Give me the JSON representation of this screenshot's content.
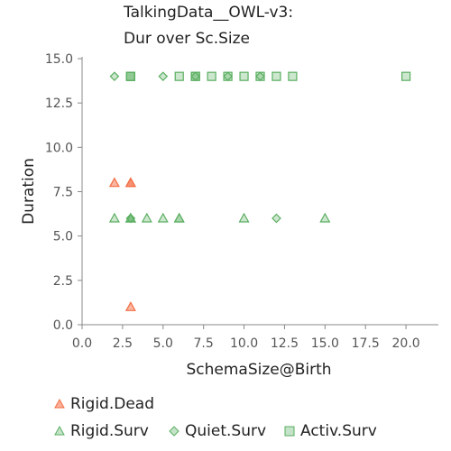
{
  "chart_data": {
    "type": "scatter",
    "title_lines": [
      "TalkingData__OWL-v3:",
      "Dur over Sc.Size"
    ],
    "xlabel": "SchemaSize@Birth",
    "ylabel": "Duration",
    "xlim": [
      0,
      22
    ],
    "ylim": [
      0,
      15
    ],
    "xticks": [
      "0.0",
      "2.5",
      "5.0",
      "7.5",
      "10.0",
      "12.5",
      "15.0",
      "17.5",
      "20.0"
    ],
    "yticks": [
      "0.0",
      "2.5",
      "5.0",
      "7.5",
      "10.0",
      "12.5",
      "15.0"
    ],
    "grid": false,
    "legend_position": "bottom",
    "series": [
      {
        "name": "Rigid.Dead",
        "marker": "triangle",
        "color": "#f46d43",
        "points": [
          [
            2,
            8
          ],
          [
            3,
            8
          ],
          [
            3,
            8
          ],
          [
            3,
            1
          ]
        ]
      },
      {
        "name": "Rigid.Surv",
        "marker": "triangle",
        "color": "#5aae61",
        "points": [
          [
            2,
            6
          ],
          [
            3,
            6
          ],
          [
            3,
            6
          ],
          [
            3,
            6
          ],
          [
            4,
            6
          ],
          [
            5,
            6
          ],
          [
            6,
            6
          ],
          [
            6,
            6
          ],
          [
            10,
            6
          ],
          [
            15,
            6
          ]
        ]
      },
      {
        "name": "Quiet.Surv",
        "marker": "diamond",
        "color": "#5aae61",
        "points": [
          [
            2,
            14
          ],
          [
            3,
            6
          ],
          [
            5,
            14
          ],
          [
            7,
            14
          ],
          [
            9,
            14
          ],
          [
            11,
            14
          ],
          [
            12,
            6
          ]
        ]
      },
      {
        "name": "Activ.Surv",
        "marker": "square",
        "color": "#5aae61",
        "points": [
          [
            3,
            14
          ],
          [
            3,
            14
          ],
          [
            3,
            14
          ],
          [
            6,
            14
          ],
          [
            7,
            14
          ],
          [
            7,
            14
          ],
          [
            8,
            14
          ],
          [
            9,
            14
          ],
          [
            10,
            14
          ],
          [
            11,
            14
          ],
          [
            12,
            14
          ],
          [
            13,
            14
          ],
          [
            20,
            14
          ]
        ]
      }
    ]
  }
}
